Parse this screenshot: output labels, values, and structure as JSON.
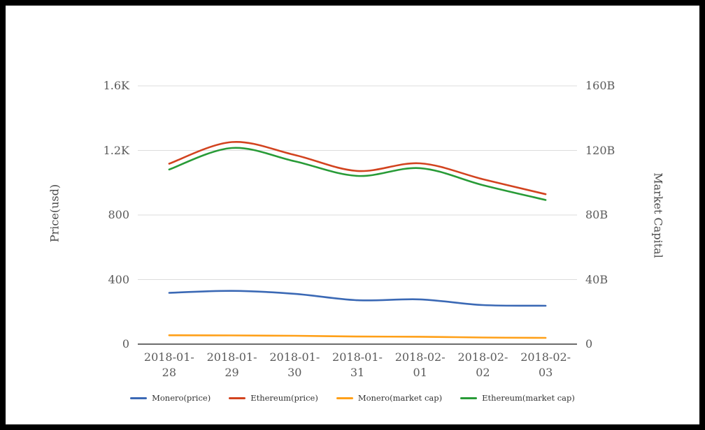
{
  "chart_data": {
    "type": "line",
    "categories": [
      "2018-01-28",
      "2018-01-29",
      "2018-01-30",
      "2018-01-31",
      "2018-02-01",
      "2018-02-02",
      "2018-02-03"
    ],
    "series": [
      {
        "name": "Monero(price)",
        "axis": "left",
        "color": "#3b69b5",
        "values": [
          318,
          330,
          312,
          272,
          277,
          242,
          238
        ]
      },
      {
        "name": "Ethereum(price)",
        "axis": "left",
        "color": "#d2431f",
        "values": [
          1118,
          1252,
          1172,
          1073,
          1120,
          1022,
          929
        ]
      },
      {
        "name": "Monero(market cap)",
        "axis": "right",
        "color": "#ffa018",
        "values": [
          5.5,
          5.4,
          5.2,
          4.7,
          4.6,
          4.1,
          3.9
        ]
      },
      {
        "name": "Ethereum(market cap)",
        "axis": "right",
        "color": "#289b37",
        "values": [
          108.2,
          121.5,
          113.3,
          104.2,
          109.0,
          98.5,
          89.3
        ]
      }
    ],
    "left_axis": {
      "title": "Price(usd)",
      "ticks": [
        "0",
        "400",
        "800",
        "1.2K",
        "1.6K"
      ],
      "tick_values": [
        0,
        400,
        800,
        1200,
        1600
      ],
      "range": [
        0,
        1600
      ]
    },
    "right_axis": {
      "title": "Market Capital",
      "ticks": [
        "0",
        "40B",
        "80B",
        "120B",
        "160B"
      ],
      "tick_values": [
        0,
        40,
        80,
        120,
        160
      ],
      "range": [
        0,
        160
      ]
    },
    "grid": "horizontal-only",
    "legend_position": "bottom",
    "title": ""
  }
}
